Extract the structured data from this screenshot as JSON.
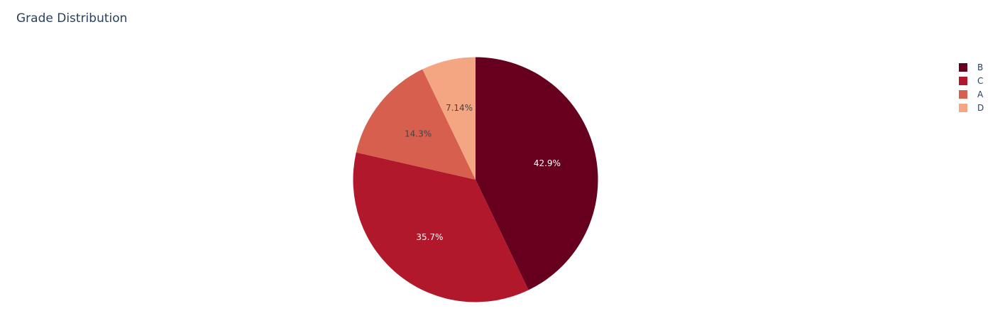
{
  "chart_data": {
    "type": "pie",
    "title": "Grade Distribution",
    "labels": [
      "B",
      "C",
      "A",
      "D"
    ],
    "values": [
      42.9,
      35.7,
      14.3,
      7.14
    ],
    "text": [
      "42.9%",
      "35.7%",
      "14.3%",
      "7.14%"
    ],
    "colors": [
      "#67001f",
      "#b2182b",
      "#d6604d",
      "#f4a582"
    ],
    "text_colors": [
      "#ffffff",
      "#ffffff",
      "#444444",
      "#444444"
    ],
    "direction": "clockwise",
    "start": "top",
    "legend_position": "top-right"
  }
}
